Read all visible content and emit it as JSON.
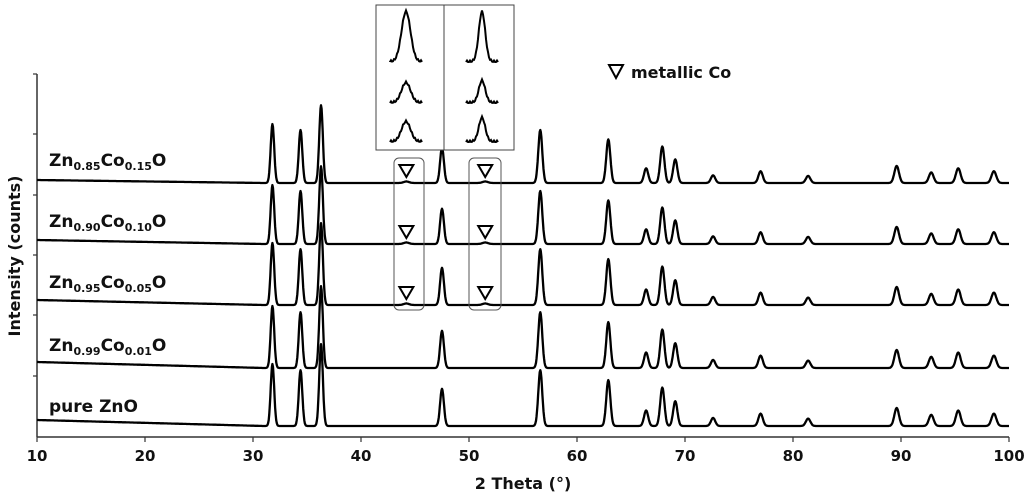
{
  "chart_data": {
    "type": "line",
    "title": "",
    "xlabel": "2 Theta  (°)",
    "ylabel": "Intensity  (counts)",
    "xlim": [
      10,
      100
    ],
    "x_ticks": [
      "10",
      "20",
      "30",
      "40",
      "50",
      "60",
      "70",
      "80",
      "90",
      "100"
    ],
    "y_ticks_labeled": false,
    "grid": false,
    "legend": {
      "position": "top-right",
      "marker": "open-triangle-down",
      "label": "metallic Co"
    },
    "peaks": [
      {
        "x": 31.8,
        "h": 1.0
      },
      {
        "x": 34.4,
        "h": 0.9
      },
      {
        "x": 36.3,
        "h": 1.32
      },
      {
        "x": 47.5,
        "h": 0.6
      },
      {
        "x": 56.6,
        "h": 0.9
      },
      {
        "x": 62.9,
        "h": 0.74
      },
      {
        "x": 66.4,
        "h": 0.25
      },
      {
        "x": 67.9,
        "h": 0.62
      },
      {
        "x": 69.1,
        "h": 0.4
      },
      {
        "x": 72.6,
        "h": 0.13
      },
      {
        "x": 77.0,
        "h": 0.2
      },
      {
        "x": 81.4,
        "h": 0.12
      },
      {
        "x": 89.6,
        "h": 0.29
      },
      {
        "x": 92.8,
        "h": 0.18
      },
      {
        "x": 95.3,
        "h": 0.25
      },
      {
        "x": 98.6,
        "h": 0.2
      }
    ],
    "series": [
      {
        "name": "pure ZnO",
        "label_base": "pure ZnO",
        "sub1": "",
        "mid": "",
        "sub2": "",
        "suffix": "",
        "scale": 1.0,
        "co_peaks": false
      },
      {
        "name": "Zn0.99Co0.01O",
        "label_base": "Zn",
        "sub1": "0.99",
        "mid": "Co",
        "sub2": "0.01",
        "suffix": "O",
        "scale": 1.0,
        "co_peaks": false
      },
      {
        "name": "Zn0.95Co0.05O",
        "label_base": "Zn",
        "sub1": "0.95",
        "mid": "Co",
        "sub2": "0.05",
        "suffix": "O",
        "scale": 1.0,
        "co_peaks": true
      },
      {
        "name": "Zn0.90Co0.10O",
        "label_base": "Zn",
        "sub1": "0.90",
        "mid": "Co",
        "sub2": "0.10",
        "suffix": "O",
        "scale": 0.95,
        "co_peaks": true
      },
      {
        "name": "Zn0.85Co0.15O",
        "label_base": "Zn",
        "sub1": "0.85",
        "mid": "Co",
        "sub2": "0.15",
        "suffix": "O",
        "scale": 0.95,
        "co_peaks": true
      }
    ],
    "metallic_co_peaks_2theta": [
      44.2,
      51.5
    ]
  }
}
